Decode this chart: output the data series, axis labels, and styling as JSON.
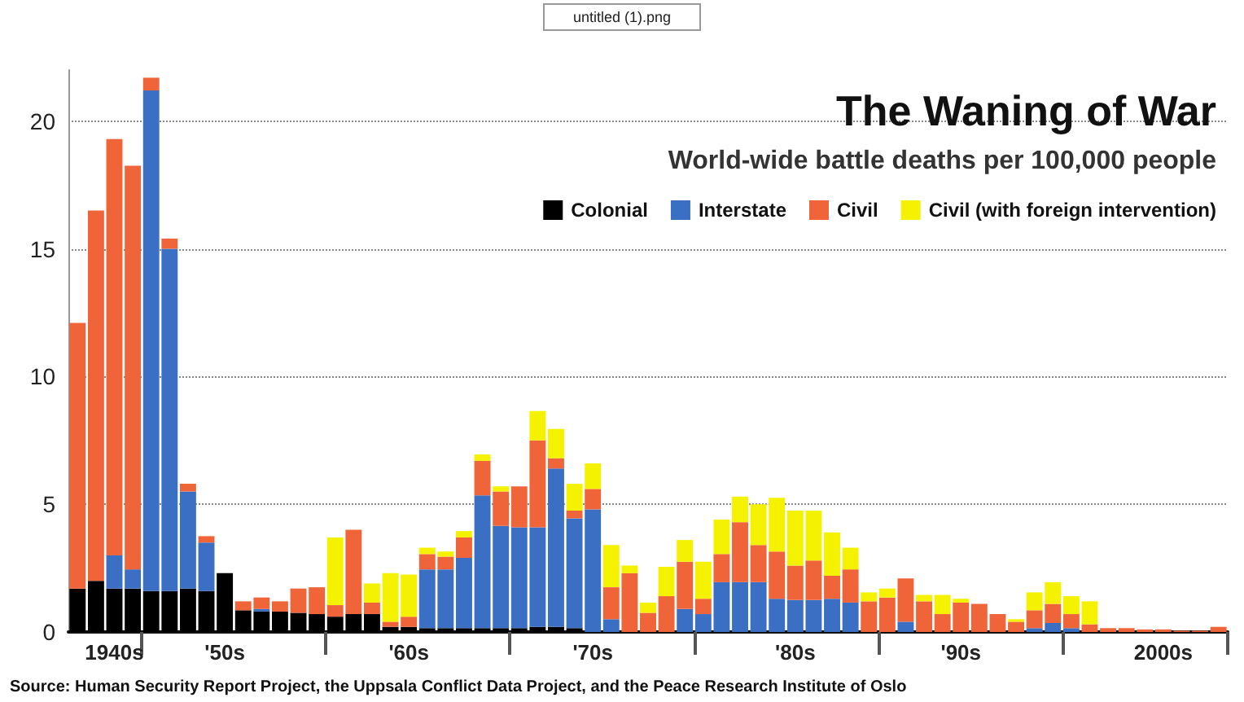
{
  "chart_data": {
    "type": "bar",
    "stacked": true,
    "title": "The Waning of War",
    "subtitle": "World-wide battle deaths per 100,000 people",
    "categories": [
      null,
      null,
      "1940s",
      null,
      null,
      null,
      null,
      null,
      "'50s",
      null,
      null,
      null,
      null,
      null,
      null,
      null,
      null,
      null,
      "'60s",
      null,
      null,
      null,
      null,
      null,
      null,
      null,
      null,
      null,
      "'70s",
      null,
      null,
      null,
      null,
      null,
      null,
      null,
      null,
      null,
      null,
      "'80s",
      null,
      null,
      null,
      null,
      null,
      null,
      null,
      null,
      "'90s",
      null,
      null,
      null,
      null,
      null,
      null,
      null,
      null,
      null,
      null,
      "2000s",
      null,
      null,
      null
    ],
    "series": [
      {
        "name": "Colonial",
        "color": "#000000",
        "values": [
          1.7,
          2.0,
          1.7,
          1.7,
          1.6,
          1.6,
          1.7,
          1.6,
          2.3,
          0.85,
          0.8,
          0.8,
          0.75,
          0.7,
          0.6,
          0.7,
          0.7,
          0.2,
          0.2,
          0.15,
          0.15,
          0.15,
          0.15,
          0.15,
          0.15,
          0.2,
          0.2,
          0.15,
          null,
          0,
          0,
          0,
          0,
          0,
          0,
          0,
          0,
          0,
          0,
          0,
          0,
          0,
          0,
          0,
          0,
          0,
          0,
          0,
          0,
          0,
          0,
          0,
          0,
          0,
          0,
          0,
          0,
          0,
          0,
          0,
          0,
          0,
          0
        ]
      },
      {
        "name": "Interstate",
        "color": "#3a6fc4",
        "values": [
          0,
          0,
          1.3,
          0.75,
          19.6,
          13.4,
          3.8,
          1.9,
          0,
          0,
          0.1,
          0,
          0,
          0,
          0,
          0,
          0,
          0,
          0,
          2.3,
          2.3,
          2.75,
          5.2,
          4.0,
          3.95,
          3.9,
          6.2,
          4.3,
          4.8,
          0.5,
          0,
          0,
          0,
          0.9,
          0.7,
          1.95,
          1.95,
          1.95,
          1.3,
          1.25,
          1.25,
          1.3,
          1.15,
          0,
          0,
          0.4,
          0,
          0,
          0,
          0,
          0,
          0,
          0.15,
          0.35,
          0.15,
          0,
          0,
          0,
          0,
          0,
          0,
          0,
          0
        ]
      },
      {
        "name": "Civil",
        "color": "#f0643a",
        "values": [
          10.4,
          14.5,
          16.3,
          15.8,
          0.5,
          0.4,
          0.3,
          0.25,
          0,
          0.35,
          0.45,
          0.4,
          0.95,
          1.05,
          0.45,
          3.3,
          0.45,
          0.2,
          0.4,
          0.6,
          0.5,
          0.8,
          1.35,
          1.35,
          1.6,
          3.4,
          0.4,
          0.3,
          0.8,
          1.25,
          2.3,
          0.75,
          1.4,
          1.85,
          0.6,
          1.1,
          2.35,
          1.45,
          1.85,
          1.35,
          1.55,
          0.9,
          1.3,
          1.2,
          1.35,
          1.7,
          1.2,
          0.7,
          1.15,
          1.1,
          0.7,
          0.4,
          0.7,
          0.75,
          0.55,
          0.3,
          0.15,
          0.15,
          0.1,
          0.1,
          0.05,
          0.05,
          0.2
        ]
      },
      {
        "name": "Civil (with foreign intervention)",
        "color": "#f5f200",
        "values": [
          0,
          0,
          0,
          0,
          0,
          0,
          0,
          0,
          0,
          0,
          0,
          0,
          0,
          0,
          2.65,
          0,
          0.75,
          1.9,
          1.65,
          0.25,
          0.2,
          0.25,
          0.25,
          0.2,
          0,
          1.15,
          1.15,
          1.05,
          1.0,
          1.65,
          0.3,
          0.4,
          1.15,
          0.85,
          1.45,
          1.35,
          1.0,
          1.6,
          2.1,
          2.15,
          1.95,
          1.7,
          0.85,
          0.35,
          0.35,
          0,
          0.25,
          0.75,
          0.15,
          0,
          0,
          0.1,
          0.7,
          0.85,
          0.7,
          0.9,
          0,
          0,
          0,
          0,
          0,
          0,
          0
        ]
      }
    ],
    "ylim": [
      0,
      22
    ],
    "yticks": [
      0,
      5,
      10,
      15,
      20
    ],
    "grid": "y",
    "legend": "top right",
    "annotations": [
      "untitled (1).png",
      "Source: Human Security Report Project, the Uppsala Conflict Data Project, and the Peace Research Institute of Oslo"
    ]
  }
}
